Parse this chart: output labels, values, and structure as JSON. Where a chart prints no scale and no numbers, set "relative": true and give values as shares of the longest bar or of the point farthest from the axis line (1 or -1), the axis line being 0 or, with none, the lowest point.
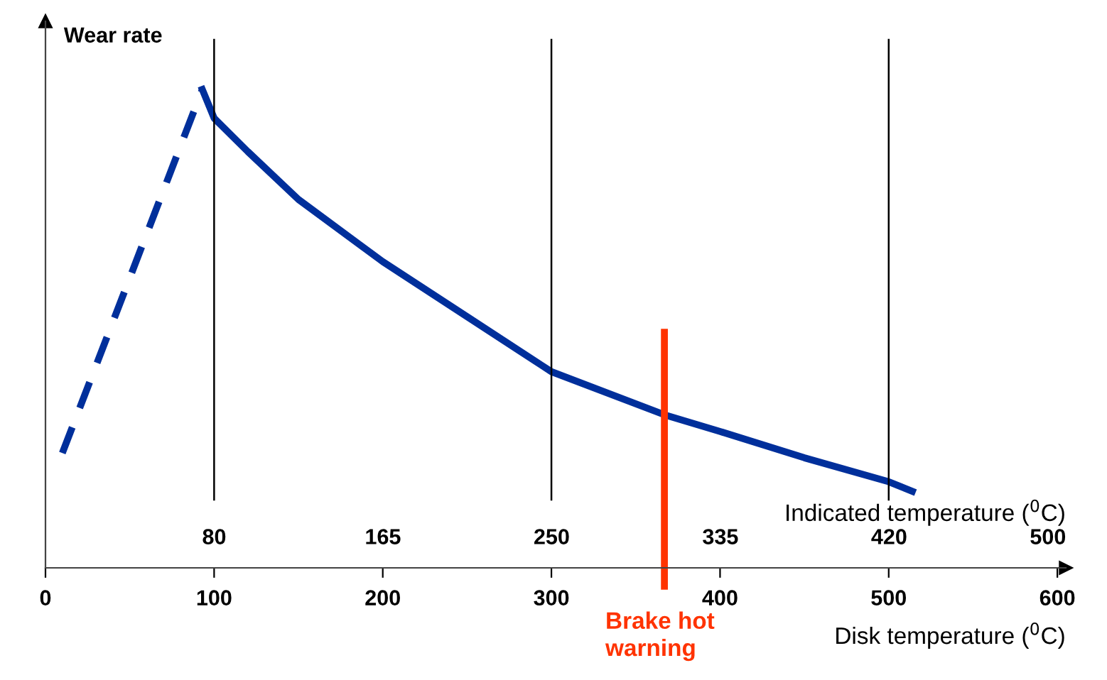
{
  "chart_data": {
    "type": "line",
    "relative": true,
    "ylabel": "Wear rate",
    "xlabel": "Disk temperature ($^{0}$C)",
    "x2label": "Indicated temperature ($^{0}$C)",
    "xlim": [
      0,
      605
    ],
    "xticks": [
      0,
      100,
      200,
      300,
      400,
      500,
      600
    ],
    "x2lim": [
      -5,
      509
    ],
    "x2ticks": [
      80,
      165,
      250,
      335,
      420,
      500
    ],
    "grid": false,
    "series": [
      {
        "color": "#002f9b",
        "line_style": "dashed",
        "x": [
          10,
          93
        ],
        "values": [
          0.24,
          1
        ]
      },
      {
        "color": "#002f9b",
        "line_style": "solid",
        "x": [
          93,
          100,
          120,
          150,
          200,
          250,
          300,
          367,
          400,
          450,
          500,
          514
        ],
        "values": [
          1,
          0.94,
          0.87,
          0.77,
          0.64,
          0.525,
          0.41,
          0.32,
          0.285,
          0.23,
          0.18,
          0.16
        ]
      }
    ],
    "ref_lines": [
      {
        "axis": "x",
        "value": 100,
        "color": "#000000"
      },
      {
        "axis": "x",
        "value": 300,
        "color": "#000000"
      },
      {
        "axis": "x",
        "value": 500,
        "color": "#000000"
      },
      {
        "axis": "x",
        "value": 367,
        "color": "#ff3300",
        "label": "Brake hot\nwarning"
      }
    ]
  }
}
